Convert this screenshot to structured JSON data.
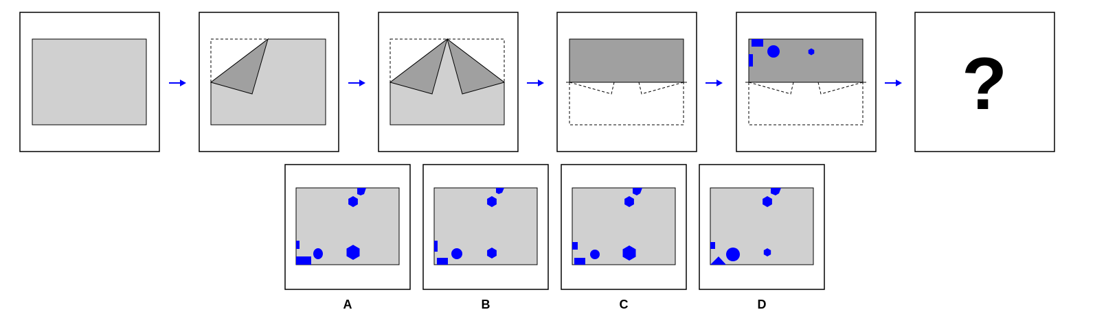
{
  "puzzle": {
    "question_mark": "?",
    "options": [
      {
        "label": "A"
      },
      {
        "label": "B"
      },
      {
        "label": "C"
      },
      {
        "label": "D"
      }
    ]
  },
  "colors": {
    "hole": "#0000ff",
    "arrow": "#0000ff",
    "paper": "#d0d0d0",
    "folded_flap": "#a0a0a0",
    "frame": "#000000"
  },
  "icons": [
    "arrow-right-icon",
    "square-hole-icon",
    "circle-hole-icon",
    "hexagon-hole-icon",
    "triangle-hole-icon"
  ]
}
